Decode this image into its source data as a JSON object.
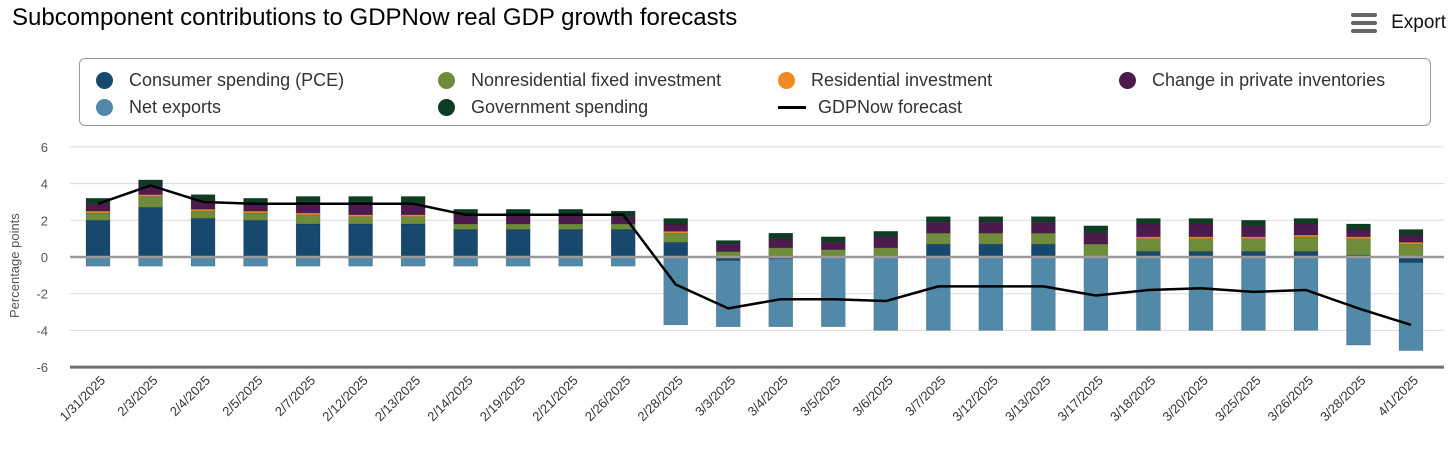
{
  "title": "Subcomponent contributions to GDPNow real GDP growth forecasts",
  "export_label": "Export",
  "colors": {
    "pce": "#17486e",
    "nonres": "#6f8c3b",
    "residential": "#f08a25",
    "inventories": "#4d1a4d",
    "net_exports": "#5289a8",
    "government": "#0d3d22",
    "forecast_line": "#000000"
  },
  "legend": [
    {
      "key": "pce",
      "label": "Consumer spending (PCE)"
    },
    {
      "key": "nonres",
      "label": "Nonresidential fixed investment"
    },
    {
      "key": "residential",
      "label": "Residential investment"
    },
    {
      "key": "inventories",
      "label": "Change in private inventories"
    },
    {
      "key": "net_exports",
      "label": "Net exports"
    },
    {
      "key": "government",
      "label": "Government spending"
    },
    {
      "key": "forecast_line",
      "label": "GDPNow forecast"
    }
  ],
  "chart_data": {
    "type": "bar",
    "stacked": true,
    "title": "Subcomponent contributions to GDPNow real GDP growth forecasts",
    "ylabel": "Percentage points",
    "ylim": [
      -6,
      6
    ],
    "yticks": [
      -6,
      -4,
      -2,
      0,
      2,
      4,
      6
    ],
    "grid": true,
    "legend_position": "top",
    "categories": [
      "1/31/2025",
      "2/3/2025",
      "2/4/2025",
      "2/5/2025",
      "2/7/2025",
      "2/12/2025",
      "2/13/2025",
      "2/14/2025",
      "2/19/2025",
      "2/21/2025",
      "2/26/2025",
      "2/28/2025",
      "3/3/2025",
      "3/4/2025",
      "3/5/2025",
      "3/6/2025",
      "3/7/2025",
      "3/12/2025",
      "3/13/2025",
      "3/17/2025",
      "3/18/2025",
      "3/20/2025",
      "3/25/2025",
      "3/26/2025",
      "3/28/2025",
      "4/1/2025"
    ],
    "series": [
      {
        "key": "pce",
        "name": "Consumer spending (PCE)",
        "values": [
          2.0,
          2.7,
          2.1,
          2.0,
          1.8,
          1.8,
          1.8,
          1.5,
          1.5,
          1.5,
          1.5,
          0.8,
          -0.2,
          -0.1,
          0.0,
          0.0,
          0.7,
          0.7,
          0.7,
          0.0,
          0.3,
          0.3,
          0.3,
          0.3,
          0.1,
          -0.3
        ]
      },
      {
        "key": "nonres",
        "name": "Nonresidential fixed investment",
        "values": [
          0.4,
          0.6,
          0.4,
          0.4,
          0.5,
          0.4,
          0.4,
          0.3,
          0.3,
          0.3,
          0.3,
          0.5,
          0.3,
          0.5,
          0.4,
          0.5,
          0.6,
          0.6,
          0.6,
          0.7,
          0.7,
          0.7,
          0.7,
          0.8,
          0.9,
          0.7
        ]
      },
      {
        "key": "residential",
        "name": "Residential investment",
        "values": [
          0.1,
          0.1,
          0.1,
          0.1,
          0.1,
          0.1,
          0.1,
          0.0,
          0.0,
          0.0,
          0.0,
          0.1,
          0.0,
          0.0,
          0.0,
          0.0,
          0.0,
          0.0,
          0.0,
          0.0,
          0.1,
          0.1,
          0.1,
          0.1,
          0.1,
          0.1
        ]
      },
      {
        "key": "inventories",
        "name": "Change in private inventories",
        "values": [
          0.4,
          0.5,
          0.5,
          0.4,
          0.6,
          0.7,
          0.6,
          0.5,
          0.5,
          0.5,
          0.4,
          0.4,
          0.4,
          0.5,
          0.4,
          0.6,
          0.6,
          0.6,
          0.6,
          0.6,
          0.7,
          0.7,
          0.6,
          0.6,
          0.4,
          0.4
        ]
      },
      {
        "key": "government",
        "name": "Government spending",
        "values": [
          0.3,
          0.3,
          0.3,
          0.3,
          0.3,
          0.3,
          0.4,
          0.3,
          0.3,
          0.3,
          0.3,
          0.3,
          0.2,
          0.3,
          0.3,
          0.3,
          0.3,
          0.3,
          0.3,
          0.4,
          0.3,
          0.3,
          0.3,
          0.3,
          0.3,
          0.3
        ]
      },
      {
        "key": "net_exports",
        "name": "Net exports",
        "values": [
          -0.5,
          -0.5,
          -0.5,
          -0.5,
          -0.5,
          -0.5,
          -0.5,
          -0.5,
          -0.5,
          -0.5,
          -0.5,
          -3.7,
          -3.6,
          -3.7,
          -3.8,
          -4.0,
          -4.0,
          -4.0,
          -4.0,
          -4.0,
          -4.0,
          -4.0,
          -4.0,
          -4.0,
          -4.8,
          -4.8
        ]
      }
    ],
    "line": {
      "key": "forecast_line",
      "name": "GDPNow forecast",
      "values": [
        2.9,
        3.9,
        3.0,
        2.9,
        2.9,
        2.9,
        2.9,
        2.3,
        2.3,
        2.3,
        2.3,
        -1.5,
        -2.8,
        -2.3,
        -2.3,
        -2.4,
        -1.6,
        -1.6,
        -1.6,
        -2.1,
        -1.8,
        -1.7,
        -1.9,
        -1.8,
        -2.8,
        -3.7
      ]
    }
  }
}
